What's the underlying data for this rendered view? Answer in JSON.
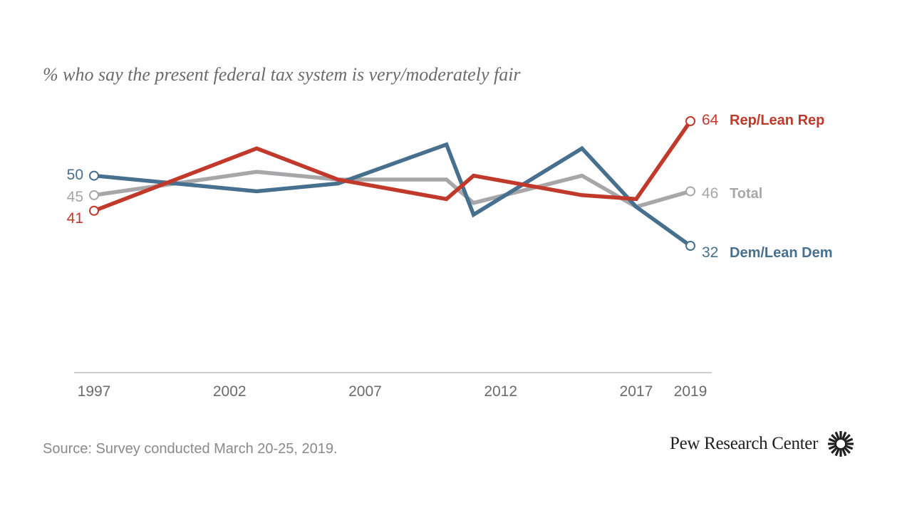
{
  "chart_data": {
    "type": "line",
    "title": "% who say the present federal tax system is very/moderately fair",
    "x": [
      1997,
      2003,
      2006,
      2010,
      2011,
      2015,
      2017,
      2019
    ],
    "x_ticks": [
      "1997",
      "2002",
      "2007",
      "2012",
      "2017",
      "2019"
    ],
    "series": [
      {
        "name": "Rep/Lean Rep",
        "color": "#c0392b",
        "values": [
          41,
          57,
          49,
          44,
          50,
          45,
          44,
          64
        ],
        "end_label": "64"
      },
      {
        "name": "Total",
        "color": "#a7a7aa",
        "values": [
          45,
          51,
          49,
          49,
          43,
          50,
          42,
          46
        ],
        "end_label": "46"
      },
      {
        "name": "Dem/Lean Dem",
        "color": "#46708d",
        "values": [
          50,
          46,
          48,
          58,
          40,
          57,
          42,
          32
        ],
        "end_label": "32"
      }
    ],
    "start_labels": [
      "50",
      "45",
      "41"
    ],
    "grid": false,
    "legend": "inline-right"
  },
  "source": "Source: Survey conducted March 20-25, 2019.",
  "brand": "Pew Research Center"
}
